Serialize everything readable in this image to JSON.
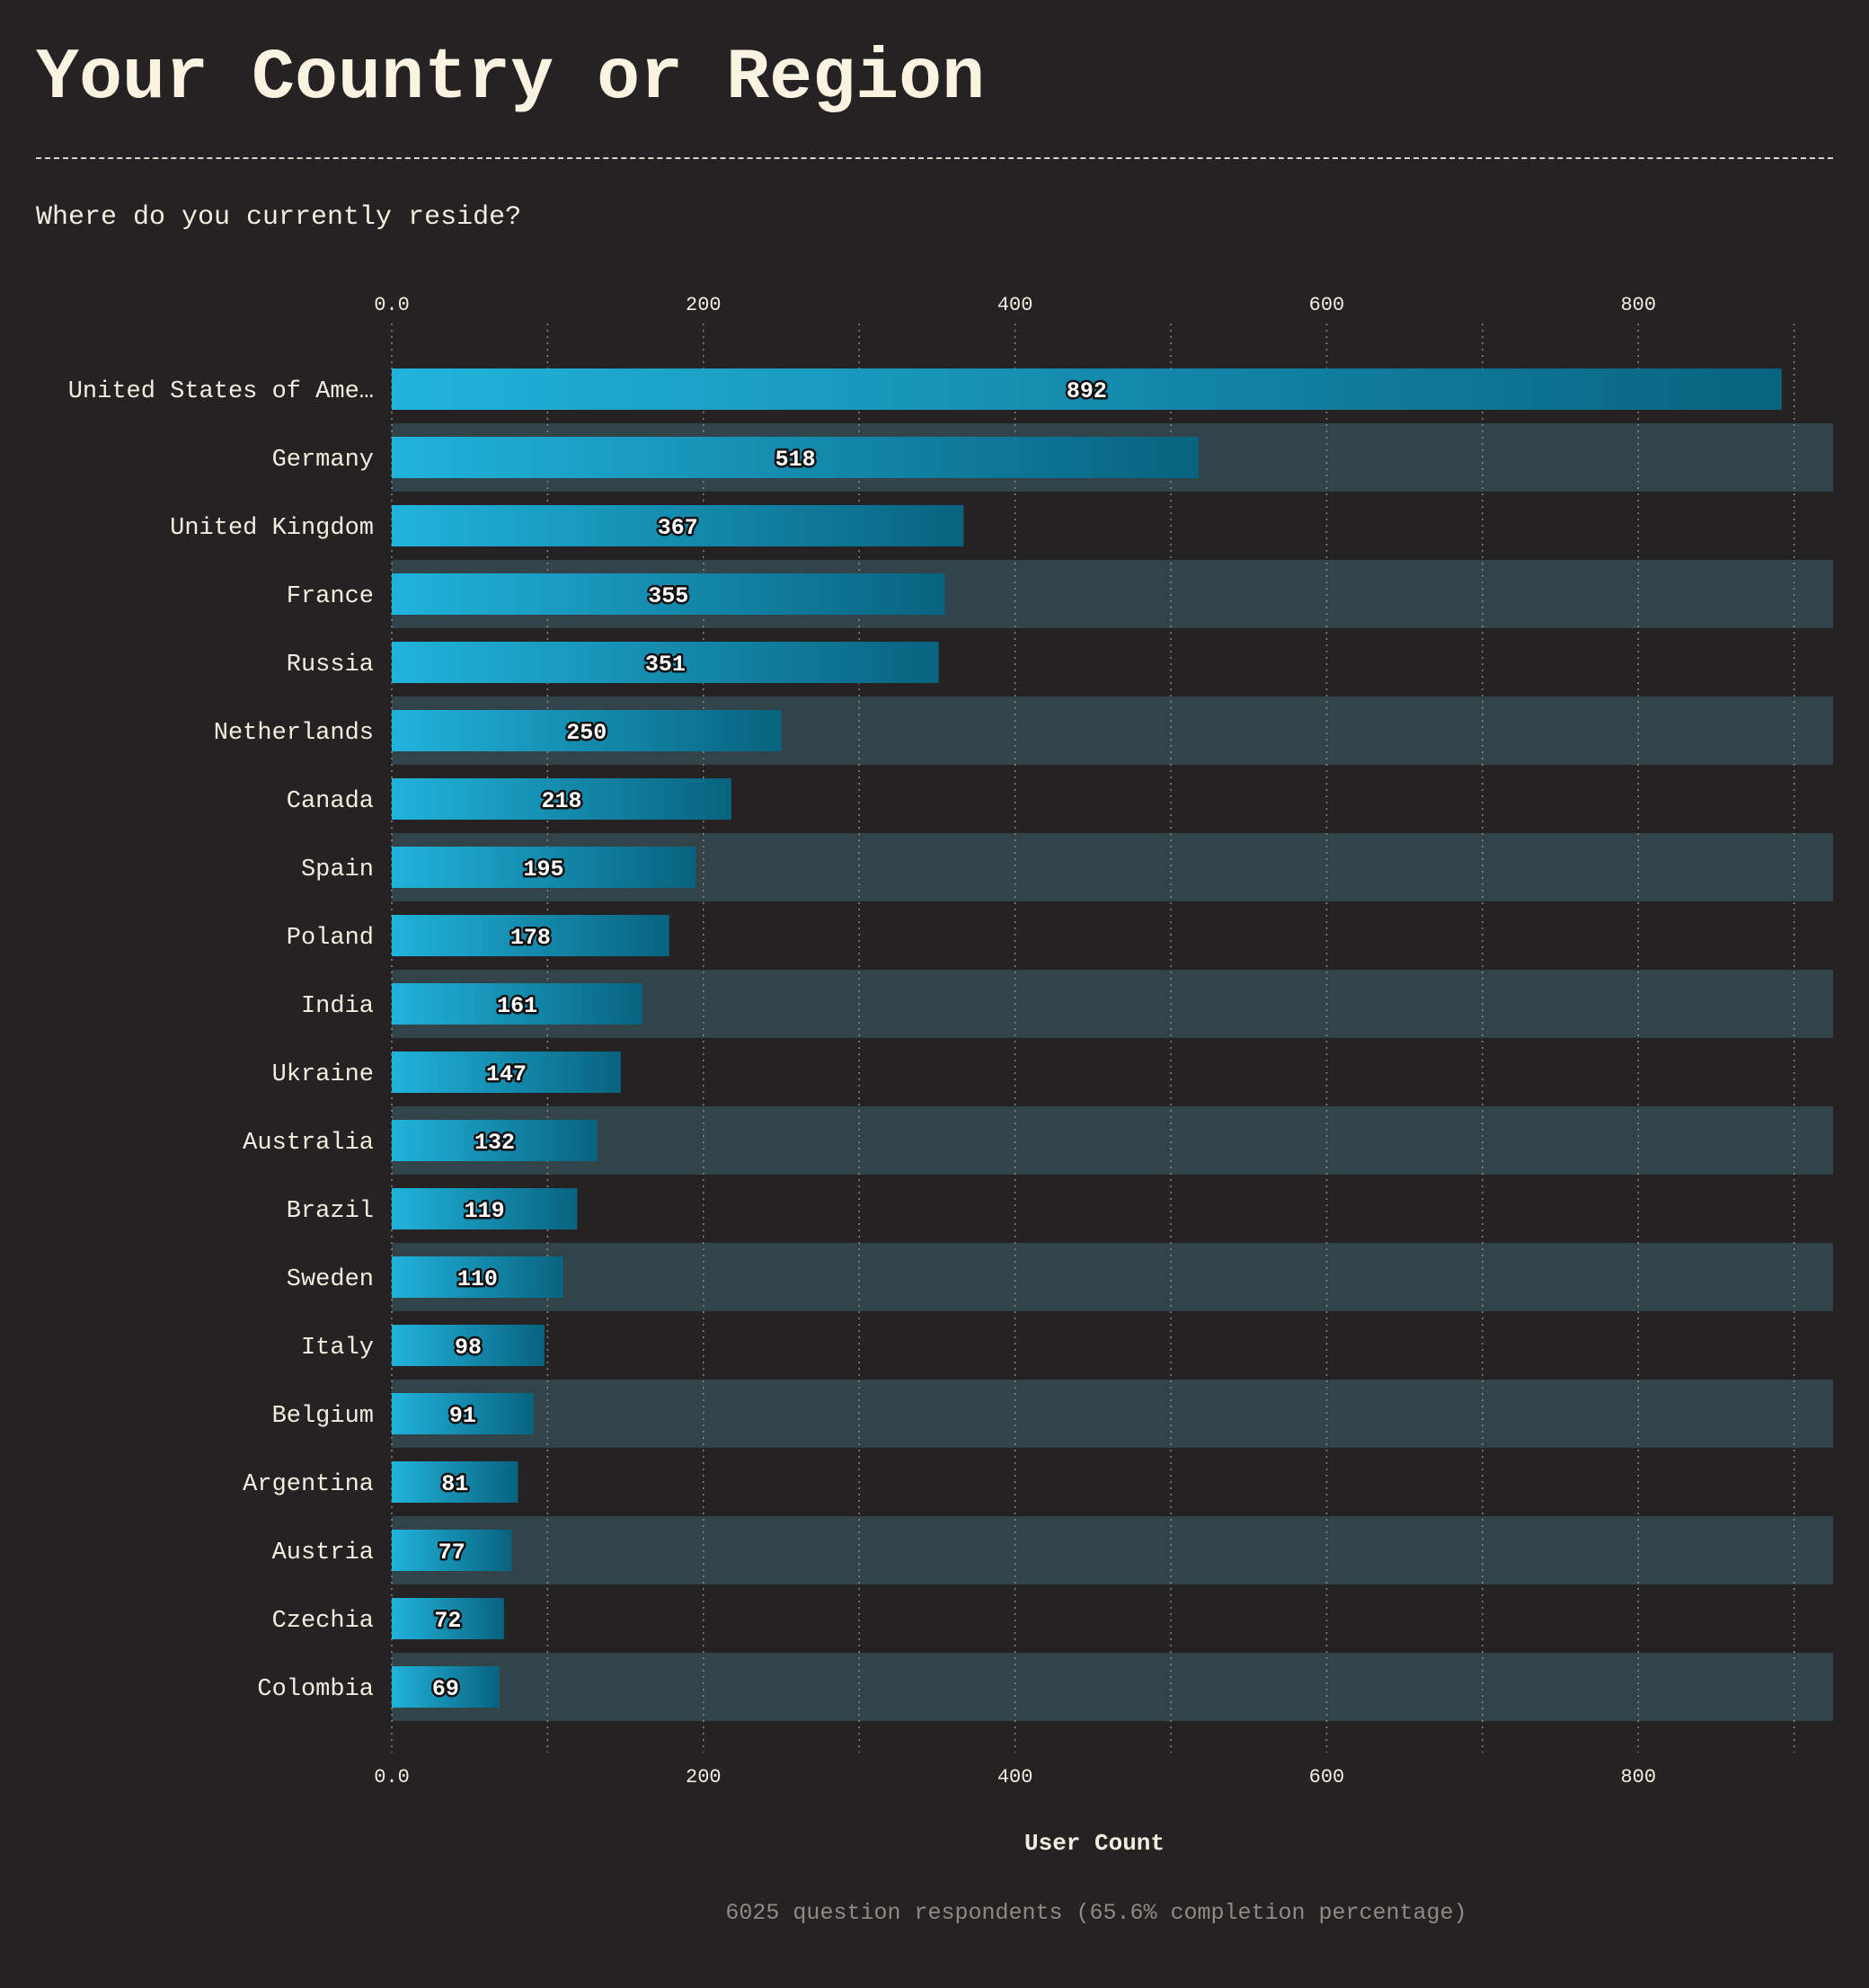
{
  "header": {
    "title": "Your Country or Region",
    "subtitle": "Where do you currently reside?"
  },
  "footer": {
    "note": "6025 question respondents (65.6% completion percentage)"
  },
  "colors": {
    "background": "#252223",
    "band": "#32434a",
    "bar_start": "#21b3dc",
    "bar_end": "#08637f",
    "text": "#f3ede0",
    "muted_text": "#8e8a86",
    "grid": "#9a9892"
  },
  "chart_data": {
    "type": "bar",
    "orientation": "horizontal",
    "categories": [
      "United States of Ame…",
      "Germany",
      "United Kingdom",
      "France",
      "Russia",
      "Netherlands",
      "Canada",
      "Spain",
      "Poland",
      "India",
      "Ukraine",
      "Australia",
      "Brazil",
      "Sweden",
      "Italy",
      "Belgium",
      "Argentina",
      "Austria",
      "Czechia",
      "Colombia"
    ],
    "values": [
      892,
      518,
      367,
      355,
      351,
      250,
      218,
      195,
      178,
      161,
      147,
      132,
      119,
      110,
      98,
      91,
      81,
      77,
      72,
      69
    ],
    "data_labels": [
      "892",
      "518",
      "367",
      "355",
      "351",
      "250",
      "218",
      "195",
      "178",
      "161",
      "147",
      "132",
      "119",
      "110",
      "98",
      "91",
      "81",
      "77",
      "72",
      "69"
    ],
    "xlabel": "User Count",
    "xlim": [
      0,
      925
    ],
    "xticks": [
      0,
      200,
      400,
      600,
      800
    ],
    "xtick_labels": [
      "0.0",
      "200",
      "400",
      "600",
      "800"
    ],
    "minor_gridlines": [
      100,
      300,
      500,
      700,
      900
    ],
    "axis_position": "top and bottom",
    "grid": true,
    "legend": "none",
    "alternating_row_bands": true
  }
}
